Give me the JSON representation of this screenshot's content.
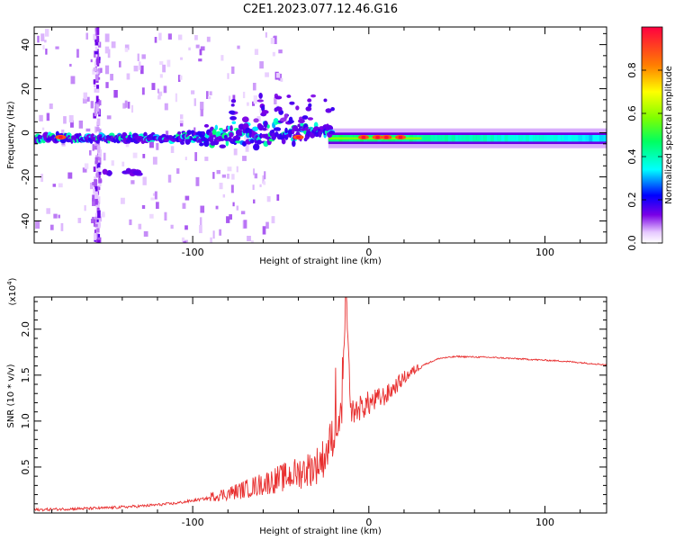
{
  "figure_title": "C2E1.2023.077.12.46.G16",
  "chart_data": [
    {
      "type": "heatmap",
      "name": "spectrogram",
      "xlabel": "Height of straight line (km)",
      "ylabel": "Frequency (Hz)",
      "xlim": [
        -190,
        135
      ],
      "ylim": [
        -50,
        48
      ],
      "xticks": [
        -100,
        0,
        100
      ],
      "xtick_labels": [
        "-100",
        "0",
        "100"
      ],
      "yticks": [
        -40,
        -20,
        0,
        20,
        40
      ],
      "ytick_labels": [
        "-40",
        "-20",
        "0",
        "20",
        "40"
      ],
      "colorbar": {
        "label": "Normalized spectral amplitude",
        "range": [
          0,
          1
        ],
        "ticks": [
          0.0,
          0.2,
          0.4,
          0.6,
          0.8
        ],
        "tick_labels": [
          "0.0",
          "0.2",
          "0.4",
          "0.6",
          "0.8"
        ]
      },
      "features": {
        "main_band_center_hz": -2.5,
        "band_spread_region_km": [
          -110,
          -20
        ],
        "band_spread_max_hz": 8,
        "strong_peaks_km": [
          -175,
          -40,
          -3,
          5,
          10,
          18
        ],
        "vertical_artifact_km": -155
      }
    },
    {
      "type": "line",
      "name": "snr",
      "xlabel": "Height of straight line (km)",
      "ylabel": "SNR (10 * v/v)",
      "scale_label": "(x10",
      "scale_exponent": "4",
      "scale_close": ")",
      "xlim": [
        -190,
        135
      ],
      "ylim": [
        0,
        2.35
      ],
      "xticks": [
        -100,
        0,
        100
      ],
      "xtick_labels": [
        "-100",
        "0",
        "100"
      ],
      "yticks": [
        0.5,
        1.0,
        1.5,
        2.0
      ],
      "ytick_labels": [
        "0.5",
        "1.0",
        "1.5",
        "2.0"
      ],
      "color": "#e83030",
      "series": [
        {
          "name": "SNR",
          "x": [
            -190,
            -170,
            -150,
            -130,
            -110,
            -100,
            -90,
            -80,
            -70,
            -60,
            -50,
            -40,
            -30,
            -25,
            -20,
            -15,
            -13,
            -10,
            -5,
            0,
            5,
            10,
            20,
            30,
            40,
            50,
            70,
            90,
            110,
            135
          ],
          "y": [
            0.03,
            0.04,
            0.05,
            0.07,
            0.1,
            0.13,
            0.16,
            0.19,
            0.23,
            0.28,
            0.33,
            0.38,
            0.45,
            0.55,
            0.8,
            1.0,
            2.3,
            1.05,
            1.1,
            1.15,
            1.2,
            1.25,
            1.45,
            1.6,
            1.68,
            1.7,
            1.69,
            1.67,
            1.65,
            1.61
          ]
        }
      ]
    }
  ]
}
